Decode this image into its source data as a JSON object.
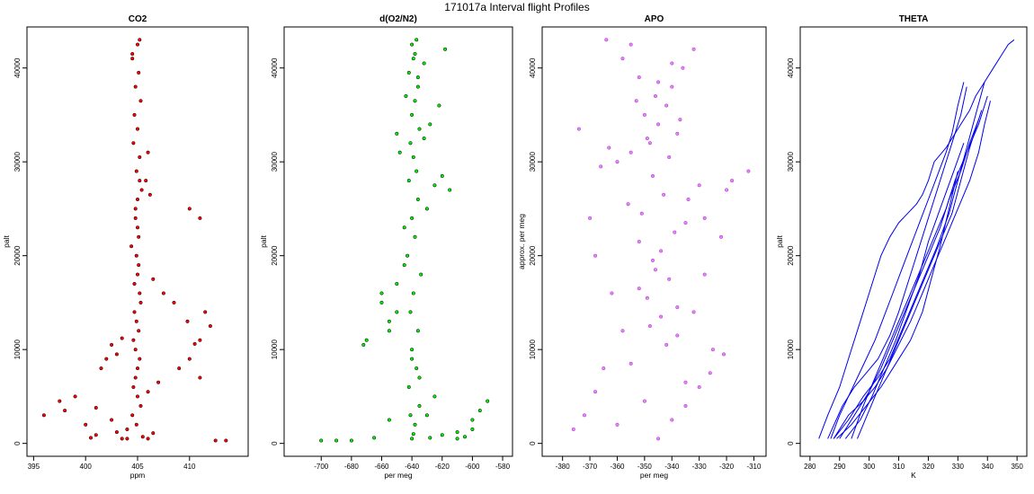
{
  "figure": {
    "title": "171017a   Interval flight Profiles"
  },
  "chart_data": [
    {
      "type": "scatter",
      "title": "CO2",
      "xlabel": "ppm",
      "ylabel": "palt",
      "xlim": [
        395,
        415
      ],
      "ylim": [
        0,
        43000
      ],
      "xticks": [
        "395",
        "400",
        "405",
        "410"
      ],
      "yticks": [
        "0",
        "10000",
        "20000",
        "30000",
        "40000"
      ],
      "color": "#ff0000",
      "outline": "#000000",
      "series": [
        {
          "x": [
            403.5,
            404.0,
            404.5,
            405.0,
            404.8,
            405.2,
            404.6,
            404.9,
            405.3,
            404.7,
            405.1,
            404.4,
            405.0,
            404.8,
            405.4,
            404.9,
            405.2,
            404.6,
            405.0,
            404.7,
            405.3,
            404.8,
            405.1,
            404.5,
            405.0,
            405.2,
            404.9,
            405.3,
            404.6,
            405.0,
            404.8,
            405.1,
            404.7,
            405.2,
            405.0,
            404.9,
            405.1,
            404.8,
            405.0,
            405.2,
            396.0,
            397.5,
            399.0,
            401.0,
            402.5,
            398.0,
            400.0,
            411.5,
            412.0,
            411.0,
            410.5,
            409.8,
            408.5,
            407.5,
            406.5,
            410.0,
            409.0,
            411.0,
            407.0,
            406.0,
            401.5,
            402.0,
            403.0,
            402.5,
            403.5,
            400.5,
            401.0,
            403.0,
            404.0,
            406.0,
            405.5,
            406.5,
            405.8,
            406.2,
            412.5,
            413.5,
            411.0,
            410.0,
            406.0,
            404.5
          ],
          "y": [
            500,
            1500,
            3000,
            5000,
            7000,
            9000,
            11000,
            13000,
            15000,
            17000,
            19000,
            21000,
            23000,
            25000,
            27000,
            29000,
            30500,
            32000,
            33500,
            35000,
            36500,
            38000,
            39500,
            41000,
            42500,
            43000,
            2000,
            4000,
            6000,
            8000,
            10000,
            12000,
            14000,
            16000,
            18000,
            20000,
            22000,
            24000,
            26000,
            28000,
            3000,
            4500,
            5000,
            3800,
            2500,
            3500,
            2000,
            14000,
            12500,
            11000,
            10600,
            13000,
            15000,
            16000,
            17500,
            9000,
            8000,
            7000,
            6500,
            5500,
            8000,
            9000,
            9500,
            10500,
            11200,
            600,
            900,
            1200,
            500,
            500,
            700,
            1100,
            28000,
            26500,
            300,
            300,
            24000,
            25000,
            31000,
            41500
          ]
        }
      ]
    },
    {
      "type": "scatter",
      "title": "d(O2/N2)",
      "xlabel": "per meg",
      "ylabel": "palt",
      "xlim": [
        -720,
        -578
      ],
      "ylim": [
        0,
        43000
      ],
      "xticks": [
        "-700",
        "-680",
        "-660",
        "-640",
        "-620",
        "-600",
        "-580"
      ],
      "yticks": [
        "0",
        "10000",
        "20000",
        "30000",
        "40000"
      ],
      "color": "#00ee00",
      "outline": "#000000",
      "series": [
        {
          "x": [
            -640,
            -638,
            -635,
            -642,
            -637,
            -640,
            -636,
            -641,
            -639,
            -634,
            -643,
            -638,
            -640,
            -636,
            -642,
            -637,
            -639,
            -641,
            -635,
            -640,
            -638,
            -636,
            -642,
            -639,
            -640,
            -637,
            -660,
            -670,
            -672,
            -655,
            -650,
            -645,
            -630,
            -625,
            -620,
            -615,
            -610,
            -605,
            -600,
            -595,
            -590,
            -600,
            -610,
            -620,
            -628,
            -630,
            -625,
            -650,
            -655,
            -660,
            -700,
            -690,
            -680,
            -665,
            -655,
            -648,
            -632,
            -628,
            -622,
            -618,
            -640,
            -635,
            -645,
            -650,
            -644,
            -636,
            -632,
            -638,
            -641,
            -639
          ],
          "y": [
            500,
            2000,
            4000,
            6000,
            8000,
            10000,
            12000,
            14000,
            16000,
            18000,
            20000,
            22000,
            24000,
            26000,
            28000,
            29000,
            30500,
            32000,
            33500,
            35000,
            36500,
            38000,
            39500,
            41000,
            42500,
            43000,
            15000,
            11000,
            10500,
            13000,
            17000,
            19000,
            25000,
            27500,
            28500,
            27000,
            500,
            700,
            1500,
            3500,
            4500,
            2500,
            1200,
            900,
            600,
            3000,
            5000,
            14000,
            12000,
            16000,
            300,
            300,
            300,
            600,
            2500,
            31000,
            32500,
            34000,
            36000,
            42000,
            9000,
            7000,
            23000,
            33000,
            37000,
            39000,
            40500,
            41500,
            3000,
            1000
          ]
        }
      ]
    },
    {
      "type": "scatter",
      "title": "APO",
      "xlabel": "per meg",
      "ylabel": "approx. per meg",
      "xlim": [
        -385,
        -308
      ],
      "ylim": [
        0,
        43000
      ],
      "xticks": [
        "-380",
        "-370",
        "-360",
        "-350",
        "-340",
        "-330",
        "-320",
        "-310"
      ],
      "yticks": [
        "0",
        "10000",
        "20000",
        "30000",
        "40000"
      ],
      "color": "#ee82ee",
      "outline": "#9933dd",
      "series": [
        {
          "x": [
            -345,
            -340,
            -350,
            -335,
            -355,
            -342,
            -348,
            -338,
            -352,
            -346,
            -344,
            -339,
            -351,
            -343,
            -347,
            -341,
            -349,
            -337,
            -353,
            -345,
            -340,
            -355,
            -360,
            -335,
            -330,
            -365,
            -325,
            -358,
            -332,
            -362,
            -328,
            -368,
            -322,
            -370,
            -318,
            -312,
            -360,
            -355,
            -348,
            -338,
            -345,
            -350,
            -342,
            -346,
            -340,
            -352,
            -336,
            -358,
            -332,
            -364,
            -376,
            -372,
            -368,
            -326,
            -321,
            -338,
            -344,
            -349,
            -341,
            -347,
            -352,
            -335,
            -356,
            -330,
            -366,
            -363,
            -374,
            -334,
            -328,
            -320
          ],
          "y": [
            500,
            2500,
            4500,
            6500,
            8500,
            10500,
            12500,
            14500,
            16500,
            18500,
            20500,
            22500,
            24500,
            26500,
            28500,
            30500,
            32500,
            34500,
            36500,
            38500,
            40500,
            42500,
            2000,
            4000,
            6000,
            8000,
            10000,
            12000,
            14000,
            16000,
            18000,
            20000,
            22000,
            24000,
            28000,
            29000,
            30000,
            31000,
            32000,
            33000,
            34000,
            35000,
            36000,
            37000,
            38000,
            39000,
            40000,
            41000,
            42000,
            43000,
            1500,
            3000,
            5500,
            7500,
            9500,
            11500,
            13500,
            15500,
            17500,
            19500,
            21500,
            23500,
            25500,
            27500,
            29500,
            31500,
            33500,
            26000,
            24000,
            27000
          ]
        }
      ]
    },
    {
      "type": "line",
      "title": "THETA",
      "xlabel": "K",
      "ylabel": "palt",
      "xlim": [
        279,
        351
      ],
      "ylim": [
        0,
        43000
      ],
      "xticks": [
        "280",
        "290",
        "300",
        "310",
        "320",
        "330",
        "340",
        "350"
      ],
      "yticks": [
        "0",
        "10000",
        "20000",
        "30000",
        "40000"
      ],
      "color": "#0000ee",
      "series": [
        {
          "x": [
            283,
            286,
            290,
            293,
            296,
            299,
            302,
            304,
            307,
            310,
            313,
            316,
            318,
            320,
            322,
            326,
            328,
            331,
            334,
            336,
            339,
            342,
            345,
            347,
            349
          ],
          "y": [
            500,
            3000,
            6000,
            9000,
            12000,
            15000,
            18000,
            20000,
            22000,
            23500,
            24500,
            25500,
            26500,
            28000,
            30000,
            31500,
            32500,
            34000,
            35500,
            37000,
            38500,
            40000,
            41500,
            42500,
            43000
          ]
        },
        {
          "x": [
            287,
            290,
            293,
            296,
            299,
            302,
            305,
            308,
            311,
            314,
            317,
            320,
            323,
            326,
            328,
            330,
            332
          ],
          "y": [
            500,
            3000,
            5000,
            7000,
            9000,
            11000,
            13500,
            16000,
            18500,
            21000,
            23500,
            26000,
            28500,
            31000,
            33000,
            36000,
            38500
          ]
        },
        {
          "x": [
            286,
            291,
            295,
            299,
            303,
            307,
            310,
            313,
            316,
            319,
            322,
            325,
            328,
            331,
            333
          ],
          "y": [
            500,
            4000,
            6000,
            7500,
            9000,
            11500,
            14000,
            17000,
            20000,
            23000,
            26000,
            29000,
            32000,
            35000,
            38000
          ]
        },
        {
          "x": [
            288,
            293,
            298,
            303,
            307,
            311,
            315,
            319,
            323,
            327,
            330,
            333,
            336,
            339
          ],
          "y": [
            500,
            2500,
            5000,
            7000,
            9000,
            12000,
            15000,
            18000,
            21000,
            24500,
            28000,
            31500,
            35000,
            38500
          ]
        },
        {
          "x": [
            290,
            295,
            300,
            304,
            308,
            312,
            316,
            320,
            324,
            327,
            331,
            334,
            337
          ],
          "y": [
            500,
            3000,
            5500,
            8000,
            11000,
            14000,
            17000,
            20000,
            23000,
            26000,
            29000,
            32000,
            34500
          ]
        },
        {
          "x": [
            292,
            297,
            301,
            305,
            309,
            313,
            317,
            320,
            324,
            328,
            332
          ],
          "y": [
            500,
            2500,
            5000,
            8000,
            11000,
            14500,
            18000,
            21500,
            25000,
            28500,
            32000
          ]
        },
        {
          "x": [
            294,
            298,
            302,
            306,
            310,
            314,
            318,
            322,
            326,
            329,
            333,
            337,
            340
          ],
          "y": [
            500,
            4000,
            7000,
            10000,
            13000,
            16000,
            19000,
            22000,
            25000,
            28000,
            31000,
            34000,
            37000
          ]
        },
        {
          "x": [
            296,
            300,
            304,
            308,
            312,
            316,
            320,
            324,
            328,
            331,
            334,
            338
          ],
          "y": [
            500,
            3500,
            6500,
            9500,
            12500,
            15500,
            18500,
            21500,
            24500,
            28000,
            31500,
            35500
          ]
        },
        {
          "x": [
            289,
            294,
            299,
            304,
            309,
            314,
            318,
            321,
            324,
            327,
            330
          ],
          "y": [
            500,
            2000,
            4000,
            6000,
            8500,
            11000,
            14000,
            17500,
            21000,
            25000,
            29000
          ]
        },
        {
          "x": [
            288,
            293,
            298,
            302,
            306,
            310,
            314,
            318,
            322,
            326,
            330,
            334,
            337,
            339,
            341
          ],
          "y": [
            500,
            3000,
            4500,
            6000,
            8000,
            10500,
            13000,
            16000,
            19000,
            22000,
            25000,
            28000,
            31000,
            34000,
            36500
          ]
        }
      ]
    }
  ]
}
